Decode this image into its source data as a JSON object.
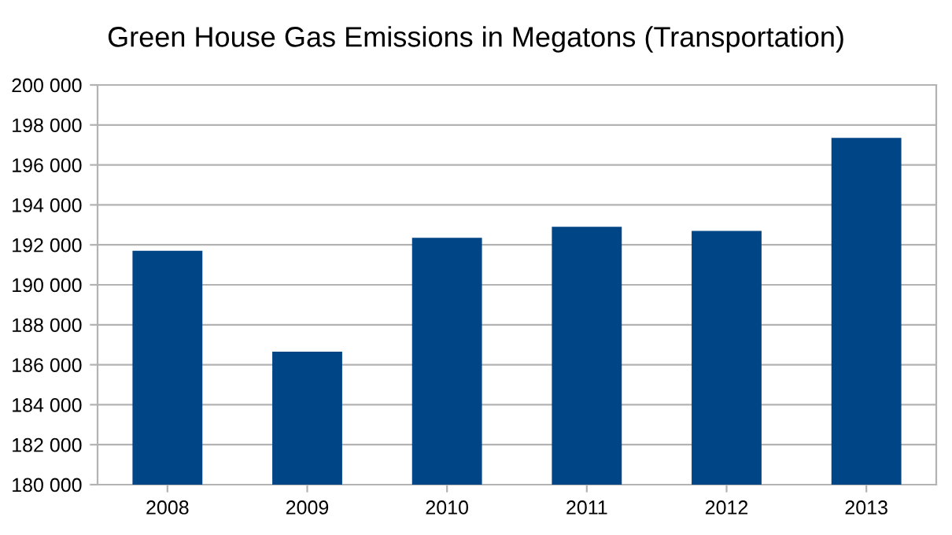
{
  "chart_data": {
    "type": "bar",
    "title": "Green House Gas Emissions in Megatons (Transportation)",
    "categories": [
      "2008",
      "2009",
      "2010",
      "2011",
      "2012",
      "2013"
    ],
    "values": [
      191700,
      186650,
      192350,
      192900,
      192700,
      197350
    ],
    "color": "#004586",
    "ylim": [
      180000,
      200000
    ],
    "yticks": [
      {
        "value": 180000,
        "label": "180 000"
      },
      {
        "value": 182000,
        "label": "182 000"
      },
      {
        "value": 184000,
        "label": "184 000"
      },
      {
        "value": 186000,
        "label": "186 000"
      },
      {
        "value": 188000,
        "label": "188 000"
      },
      {
        "value": 190000,
        "label": "190 000"
      },
      {
        "value": 192000,
        "label": "192 000"
      },
      {
        "value": 194000,
        "label": "194 000"
      },
      {
        "value": 196000,
        "label": "196 000"
      },
      {
        "value": 198000,
        "label": "198 000"
      },
      {
        "value": 200000,
        "label": "200 000"
      }
    ],
    "grid": "y",
    "legend": false
  }
}
